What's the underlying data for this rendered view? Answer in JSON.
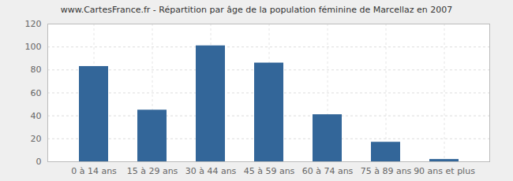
{
  "chart_data": {
    "type": "bar",
    "title": "www.CartesFrance.fr - Répartition par âge de la population féminine de Marcellaz en 2007",
    "categories": [
      "0 à 14 ans",
      "15 à 29 ans",
      "30 à 44 ans",
      "45 à 59 ans",
      "60 à 74 ans",
      "75 à 89 ans",
      "90 ans et plus"
    ],
    "values": [
      83,
      45,
      101,
      86,
      41,
      17,
      2
    ],
    "color": "#336699",
    "ylim": [
      0,
      120
    ],
    "yticks": [
      0,
      20,
      40,
      60,
      80,
      100,
      120
    ],
    "grid": true
  }
}
